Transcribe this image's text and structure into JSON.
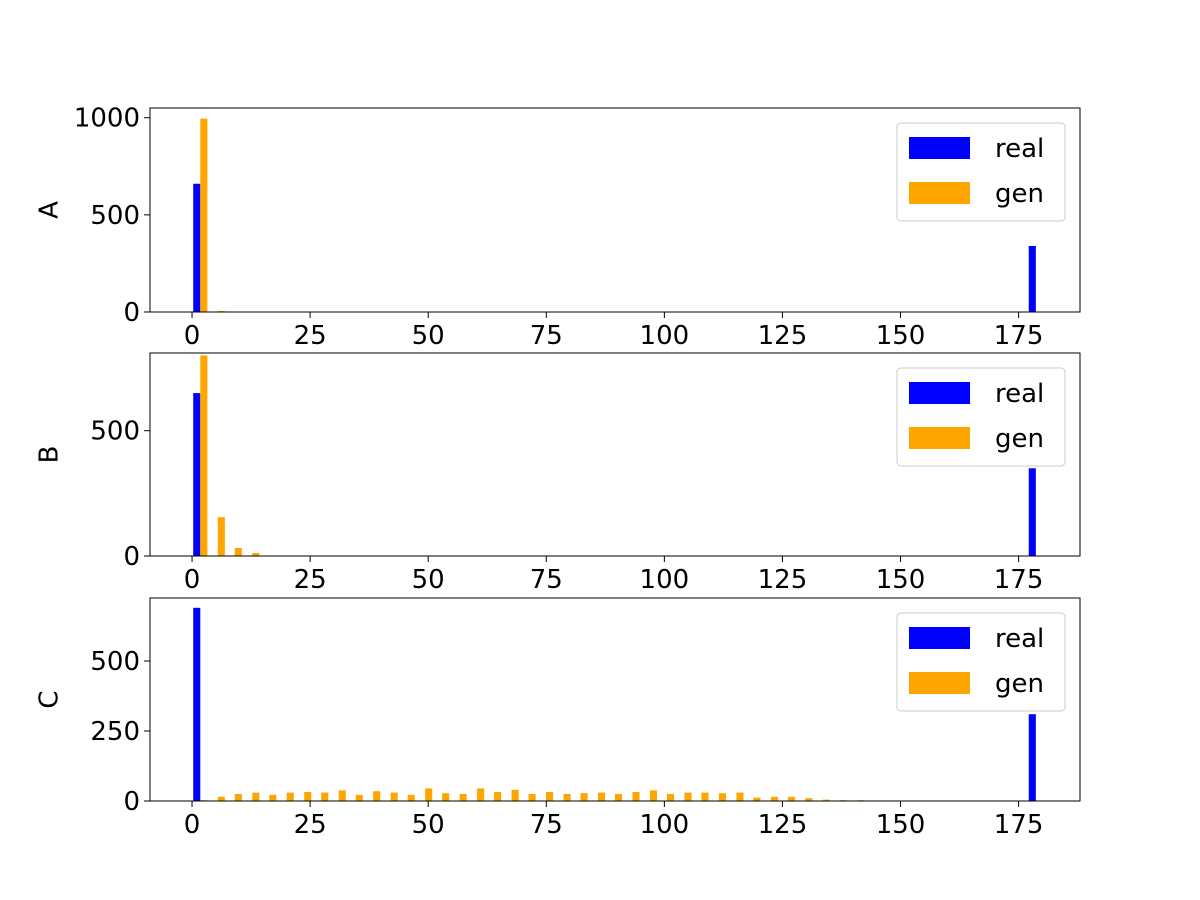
{
  "colors": {
    "real": "#0000ff",
    "gen": "#ffa500",
    "axis": "#000000",
    "legend_border": "#cccccc",
    "background": "#ffffff"
  },
  "chart_data": [
    {
      "type": "bar",
      "ylabel": "A",
      "xlim": [
        -8.9,
        188
      ],
      "ylim": [
        0,
        1050
      ],
      "xticks": [
        0,
        25,
        50,
        75,
        100,
        125,
        150,
        175
      ],
      "yticks": [
        0,
        500,
        1000
      ],
      "legend": {
        "placement": "top-right",
        "entries": [
          "real",
          "gen"
        ]
      },
      "grid": false,
      "bar_width": 1.5,
      "series": [
        {
          "name": "real",
          "x": [
            1.0,
            177.9
          ],
          "values": [
            660,
            340
          ]
        },
        {
          "name": "gen",
          "x": [
            2.5,
            6.2
          ],
          "values": [
            995,
            5
          ]
        }
      ]
    },
    {
      "type": "bar",
      "ylabel": "B",
      "xlim": [
        -8.9,
        188
      ],
      "ylim": [
        0,
        810
      ],
      "xticks": [
        0,
        25,
        50,
        75,
        100,
        125,
        150,
        175
      ],
      "yticks": [
        0,
        500
      ],
      "legend": {
        "placement": "top-right",
        "entries": [
          "real",
          "gen"
        ]
      },
      "grid": false,
      "bar_width": 1.5,
      "series": [
        {
          "name": "real",
          "x": [
            1.0,
            177.9
          ],
          "values": [
            650,
            350
          ]
        },
        {
          "name": "gen",
          "x": [
            2.5,
            6.2,
            9.8,
            13.5
          ],
          "values": [
            800,
            155,
            32,
            12
          ]
        }
      ]
    },
    {
      "type": "bar",
      "ylabel": "C",
      "xlim": [
        -8.9,
        188
      ],
      "ylim": [
        0,
        725
      ],
      "xticks": [
        0,
        25,
        50,
        75,
        100,
        125,
        150,
        175
      ],
      "yticks": [
        0,
        250,
        500
      ],
      "legend": {
        "placement": "top-right",
        "entries": [
          "real",
          "gen"
        ]
      },
      "grid": false,
      "bar_width": 1.5,
      "series": [
        {
          "name": "real",
          "x": [
            1.0,
            177.9
          ],
          "values": [
            690,
            310
          ]
        },
        {
          "name": "gen",
          "x": [
            2.5,
            6.2,
            9.8,
            13.5,
            17.1,
            20.8,
            24.5,
            28.1,
            31.8,
            35.4,
            39.1,
            42.8,
            46.4,
            50.1,
            53.7,
            57.4,
            61.1,
            64.7,
            68.4,
            72.0,
            75.7,
            79.4,
            83.0,
            86.7,
            90.3,
            94.0,
            97.7,
            101.3,
            105.0,
            108.6,
            112.3,
            116.0,
            119.6,
            123.3,
            126.9,
            130.6,
            134.3,
            137.9,
            141.6,
            145.2,
            148.9
          ],
          "values": [
            3,
            15,
            25,
            30,
            22,
            30,
            32,
            30,
            38,
            22,
            35,
            30,
            22,
            45,
            28,
            25,
            45,
            32,
            40,
            25,
            32,
            25,
            28,
            30,
            25,
            32,
            38,
            25,
            30,
            30,
            28,
            30,
            12,
            15,
            15,
            10,
            5,
            3,
            3,
            2,
            2
          ]
        }
      ]
    }
  ]
}
